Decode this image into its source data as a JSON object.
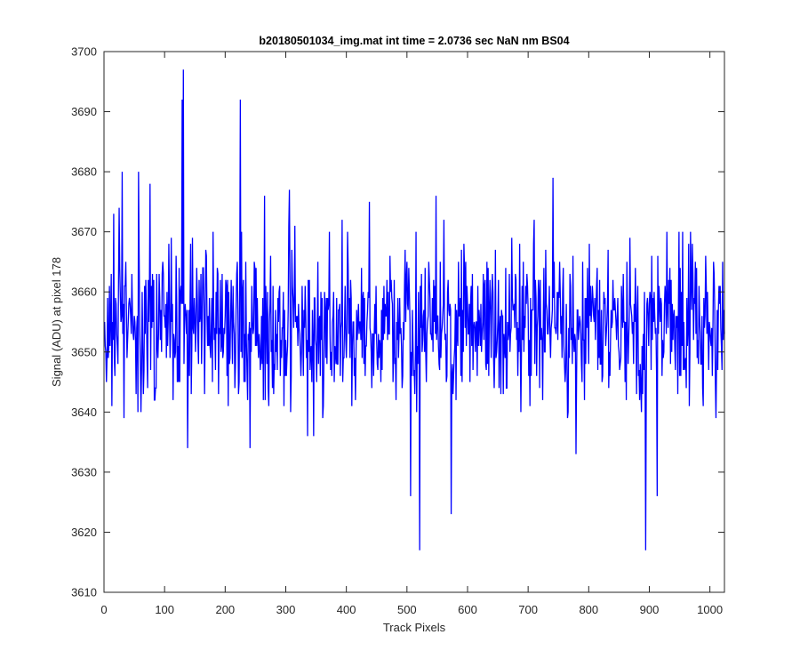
{
  "chart_data": {
    "type": "line",
    "title": "b20180501034_img.mat int time = 2.0736 sec  NaN nm BS04",
    "xlabel": "Track Pixels",
    "ylabel": "Signal (ADU) at pixel 178",
    "xlim": [
      0,
      1024
    ],
    "ylim": [
      3610,
      3700
    ],
    "xticks": [
      0,
      100,
      200,
      300,
      400,
      500,
      600,
      700,
      800,
      900,
      1000
    ],
    "yticks": [
      3610,
      3620,
      3630,
      3640,
      3650,
      3660,
      3670,
      3680,
      3690,
      3700
    ],
    "grid": false,
    "line_color": "#0000ff",
    "series": [
      {
        "n_points": 1024,
        "x_step": 1,
        "mean": 3654,
        "stdev": 6.5,
        "values_sampled_every_8": [
          3655,
          3661,
          3649,
          3674,
          3639,
          3658,
          3652,
          3680,
          3643,
          3662,
          3655,
          3649,
          3665,
          3651,
          3658,
          3645,
          3678,
          3657,
          3651,
          3664,
          3648,
          3666,
          3654,
          3660,
          3650,
          3662,
          3656,
          3648,
          3692,
          3645,
          3634,
          3664,
          3651,
          3676,
          3655,
          3648,
          3660,
          3641,
          3671,
          3654,
          3658,
          3646,
          3662,
          3652,
          3665,
          3639,
          3659,
          3655,
          3648,
          3672,
          3654,
          3641,
          3657,
          3664,
          3651,
          3650,
          3661,
          3645,
          3656,
          3660,
          3649,
          3653,
          3667,
          3655,
          3643,
          3658,
          3650,
          3662,
          3655,
          3648,
          3672,
          3657,
          3646,
          3665,
          3650,
          3653,
          3647,
          3661,
          3655,
          3648,
          3663,
          3652,
          3656,
          3644,
          3669,
          3652,
          3650,
          3658,
          3646,
          3659,
          3652,
          3667,
          3649,
          3654,
          3660,
          3645,
          3663,
          3653,
          3656,
          3642,
          3668,
          3655,
          3649,
          3660,
          3644,
          3657,
          3651,
          3663,
          3648,
          3655,
          3661,
          3643,
          3659,
          3652,
          3657,
          3646,
          3670,
          3650,
          3654,
          3660,
          3644,
          3662,
          3653,
          3648,
          3666,
          3652,
          3645,
          3661
        ]
      }
    ],
    "annotated_extremes": [
      {
        "x": 130,
        "y": 3697
      },
      {
        "x": 128,
        "y": 3692
      },
      {
        "x": 137,
        "y": 3634
      },
      {
        "x": 520,
        "y": 3617
      },
      {
        "x": 505,
        "y": 3626
      },
      {
        "x": 572,
        "y": 3623
      },
      {
        "x": 893,
        "y": 3617
      },
      {
        "x": 912,
        "y": 3626
      },
      {
        "x": 740,
        "y": 3679
      },
      {
        "x": 437,
        "y": 3675
      },
      {
        "x": 29,
        "y": 3680
      },
      {
        "x": 75,
        "y": 3678
      }
    ]
  }
}
